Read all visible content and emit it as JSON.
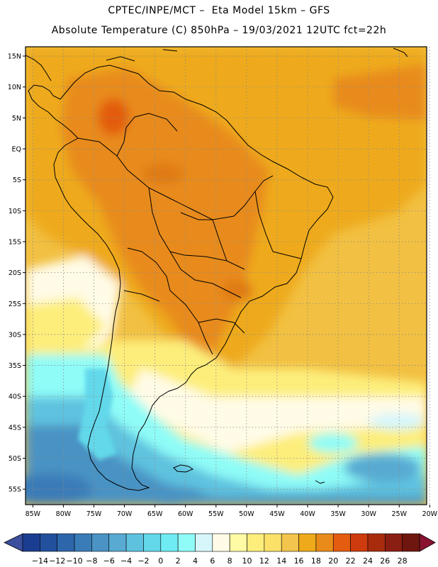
{
  "header": {
    "line1": "CPTEC/INPE/MCT –  Eta Model 15km – GFS",
    "line2": "Absolute Temperature (C) 850hPa – 19/03/2021 12UTC fct=22h"
  },
  "map": {
    "lat_labels": [
      "15N",
      "10N",
      "5N",
      "EQ",
      "5S",
      "10S",
      "15S",
      "20S",
      "25S",
      "30S",
      "35S",
      "40S",
      "45S",
      "50S",
      "55S"
    ],
    "lon_labels": [
      "85W",
      "80W",
      "75W",
      "70W",
      "65W",
      "60W",
      "55W",
      "50W",
      "45W",
      "40W",
      "35W",
      "30W",
      "25W",
      "20W"
    ],
    "lat_values": [
      15,
      10,
      5,
      0,
      -5,
      -10,
      -15,
      -20,
      -25,
      -30,
      -35,
      -40,
      -45,
      -50,
      -55
    ],
    "lon_values": [
      -85,
      -80,
      -75,
      -70,
      -65,
      -60,
      -55,
      -50,
      -45,
      -40,
      -35,
      -30,
      -25,
      -20
    ],
    "lat_range": [
      -57.5,
      16.5
    ],
    "lon_range": [
      -86.2,
      -20.5
    ],
    "grid": "dotted"
  },
  "colorbar": {
    "labels": [
      "-14",
      "-12",
      "-10",
      "-8",
      "-6",
      "-4",
      "-2",
      "0",
      "2",
      "4",
      "6",
      "8",
      "10",
      "12",
      "14",
      "16",
      "18",
      "20",
      "22",
      "24",
      "26",
      "28"
    ],
    "colors": [
      "#1b3d91",
      "#22509c",
      "#2d66ab",
      "#3a7cb8",
      "#4a93c4",
      "#58aad2",
      "#5ec2df",
      "#62d8ea",
      "#6fecf3",
      "#8ffcf7",
      "#d6f6fb",
      "#fffbe6",
      "#fefba4",
      "#fdee7c",
      "#fce169",
      "#f3c54d",
      "#eeaa1a",
      "#e88b1b",
      "#e35c0f",
      "#cd3b0e",
      "#a82b0d",
      "#8a1e12",
      "#6e160f"
    ],
    "low_color": "#3b4f9e",
    "high_color": "#8a1230"
  }
}
